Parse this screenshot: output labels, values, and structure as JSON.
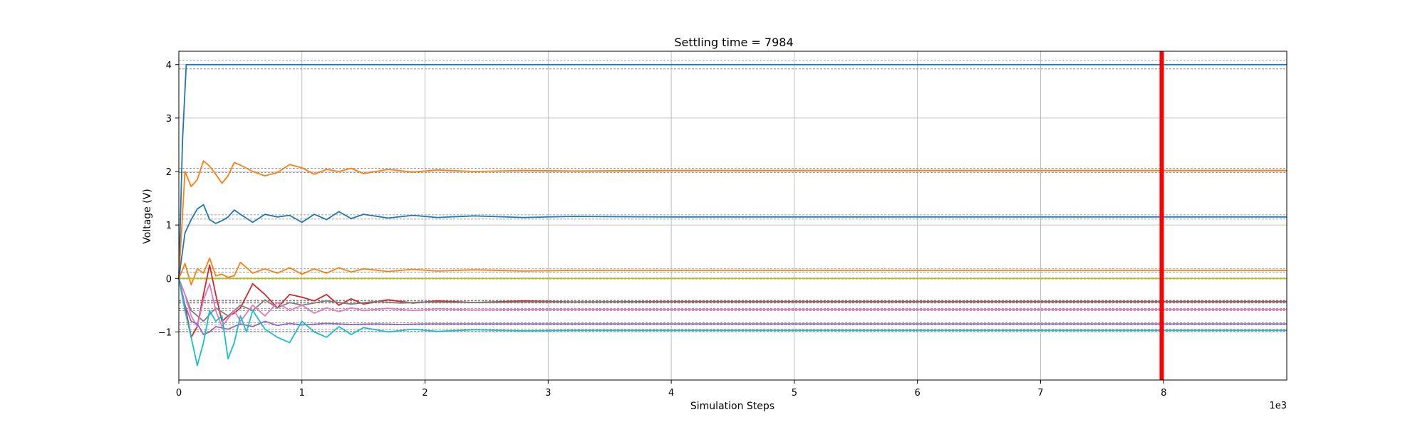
{
  "chart_data": {
    "type": "line",
    "title": "Settling time = 7984",
    "xlabel": "Simulation Steps",
    "ylabel": "Voltage (V)",
    "x_offset_text": "1e3",
    "xlim": [
      0,
      9000
    ],
    "ylim": [
      -1.9,
      4.25
    ],
    "xticks": [
      0,
      1000,
      2000,
      3000,
      4000,
      5000,
      6000,
      7000,
      8000
    ],
    "xtick_labels": [
      "0",
      "1",
      "2",
      "3",
      "4",
      "5",
      "6",
      "7",
      "8"
    ],
    "yticks": [
      -1,
      0,
      1,
      2,
      3,
      4
    ],
    "ytick_labels": [
      "−1",
      "0",
      "1",
      "2",
      "3",
      "4"
    ],
    "grid": true,
    "settling_step": 7984,
    "settling_line_color": "#ff0000",
    "tolerance_band_color": "#808080",
    "series": [
      {
        "target": 4.0,
        "color": "#1f77b4",
        "band": 0.08,
        "x": [
          0,
          30,
          60,
          9000
        ],
        "y": [
          0,
          2.6,
          4.0,
          4.0
        ]
      },
      {
        "target": 2.02,
        "color": "#ff7f0e",
        "band": 0.04,
        "x": [
          0,
          50,
          100,
          150,
          200,
          250,
          300,
          350,
          400,
          450,
          500,
          600,
          700,
          800,
          900,
          1000,
          1100,
          1200,
          1300,
          1400,
          1500,
          1700,
          1900,
          2100,
          2400,
          2800,
          3200,
          4000,
          5000,
          6000,
          7000,
          8000,
          9000
        ],
        "y": [
          0,
          2.0,
          1.72,
          1.85,
          2.2,
          2.1,
          1.95,
          1.78,
          1.92,
          2.17,
          2.12,
          2.0,
          1.92,
          1.98,
          2.13,
          2.07,
          1.95,
          2.04,
          2.0,
          2.06,
          1.96,
          2.04,
          1.99,
          2.03,
          2.0,
          2.02,
          2.01,
          2.02,
          2.02,
          2.02,
          2.02,
          2.02,
          2.02
        ]
      },
      {
        "target": 1.15,
        "color": "#1f77b4",
        "band": 0.04,
        "x": [
          0,
          50,
          100,
          150,
          200,
          250,
          300,
          350,
          400,
          450,
          500,
          600,
          700,
          800,
          900,
          1000,
          1100,
          1200,
          1300,
          1400,
          1500,
          1700,
          1900,
          2100,
          2400,
          2800,
          3200,
          4000,
          5000,
          6000,
          7000,
          8000,
          9000
        ],
        "y": [
          0,
          0.85,
          1.1,
          1.3,
          1.38,
          1.1,
          1.03,
          1.08,
          1.15,
          1.28,
          1.2,
          1.05,
          1.2,
          1.15,
          1.18,
          1.05,
          1.2,
          1.1,
          1.25,
          1.12,
          1.2,
          1.13,
          1.18,
          1.14,
          1.17,
          1.14,
          1.16,
          1.15,
          1.15,
          1.15,
          1.15,
          1.15,
          1.15
        ]
      },
      {
        "target": 0.15,
        "color": "#ff7f0e",
        "band": 0.03,
        "x": [
          0,
          50,
          100,
          150,
          200,
          250,
          300,
          350,
          400,
          450,
          500,
          600,
          700,
          800,
          900,
          1000,
          1100,
          1200,
          1300,
          1400,
          1500,
          1700,
          1900,
          2100,
          2400,
          2800,
          3200,
          4000,
          5000,
          6000,
          7000,
          8000,
          9000
        ],
        "y": [
          0,
          0.28,
          -0.12,
          0.18,
          0.1,
          0.38,
          0.05,
          0.08,
          0.02,
          0.05,
          0.3,
          0.1,
          0.18,
          0.1,
          0.2,
          0.08,
          0.18,
          0.1,
          0.2,
          0.12,
          0.18,
          0.13,
          0.17,
          0.14,
          0.16,
          0.14,
          0.15,
          0.15,
          0.15,
          0.15,
          0.15,
          0.15,
          0.15
        ]
      },
      {
        "target": 0.0,
        "color": "#bcbd22",
        "band": 0.01,
        "x": [
          0,
          9000
        ],
        "y": [
          0.0,
          0.0
        ]
      },
      {
        "target": -0.43,
        "color": "#d62728",
        "band": 0.02,
        "x": [
          0,
          50,
          100,
          150,
          200,
          250,
          300,
          350,
          400,
          450,
          500,
          600,
          700,
          800,
          900,
          1000,
          1100,
          1200,
          1300,
          1400,
          1500,
          1700,
          1900,
          2100,
          2400,
          2800,
          3200,
          4000,
          5000,
          6000,
          7000,
          8000,
          9000
        ],
        "y": [
          0,
          -0.5,
          -1.1,
          -0.9,
          -0.3,
          0.25,
          -0.3,
          -0.8,
          -0.7,
          -0.65,
          -0.55,
          -0.1,
          -0.3,
          -0.55,
          -0.3,
          -0.35,
          -0.42,
          -0.3,
          -0.5,
          -0.38,
          -0.48,
          -0.4,
          -0.46,
          -0.42,
          -0.45,
          -0.42,
          -0.44,
          -0.43,
          -0.43,
          -0.43,
          -0.43,
          -0.43,
          -0.43
        ]
      },
      {
        "target": -0.44,
        "color": "#7f7f7f",
        "band": 0.02,
        "x": [
          0,
          100,
          200,
          300,
          400,
          500,
          600,
          700,
          800,
          900,
          1000,
          1200,
          1400,
          1600,
          1800,
          2000,
          2400,
          2800,
          3200,
          4000,
          5000,
          6000,
          7000,
          8000,
          9000
        ],
        "y": [
          0,
          -0.6,
          -0.8,
          -0.55,
          -0.7,
          -0.5,
          -0.6,
          -0.4,
          -0.55,
          -0.45,
          -0.5,
          -0.42,
          -0.48,
          -0.43,
          -0.46,
          -0.44,
          -0.45,
          -0.44,
          -0.44,
          -0.44,
          -0.44,
          -0.44,
          -0.44,
          -0.44,
          -0.44
        ]
      },
      {
        "target": -0.58,
        "color": "#e377c2",
        "band": 0.02,
        "x": [
          0,
          50,
          100,
          150,
          200,
          250,
          300,
          350,
          400,
          450,
          500,
          600,
          700,
          800,
          900,
          1000,
          1100,
          1200,
          1300,
          1400,
          1500,
          1700,
          1900,
          2100,
          2400,
          2800,
          3200,
          4000,
          5000,
          6000,
          7000,
          8000,
          9000
        ],
        "y": [
          0,
          -0.3,
          -0.7,
          -0.9,
          -0.4,
          -0.1,
          -0.6,
          -0.9,
          -0.75,
          -0.6,
          -0.8,
          -0.5,
          -0.7,
          -0.45,
          -0.6,
          -0.5,
          -0.65,
          -0.55,
          -0.62,
          -0.55,
          -0.6,
          -0.56,
          -0.6,
          -0.57,
          -0.59,
          -0.58,
          -0.58,
          -0.58,
          -0.58,
          -0.58,
          -0.58,
          -0.58,
          -0.58
        ]
      },
      {
        "target": -0.85,
        "color": "#9467bd",
        "band": 0.02,
        "x": [
          0,
          50,
          100,
          150,
          200,
          250,
          300,
          400,
          500,
          600,
          700,
          800,
          900,
          1000,
          1200,
          1400,
          1600,
          1800,
          2000,
          2400,
          2800,
          3200,
          4000,
          5000,
          6000,
          7000,
          8000,
          9000
        ],
        "y": [
          0,
          -0.5,
          -0.8,
          -0.85,
          -1.05,
          -1.0,
          -0.9,
          -0.95,
          -0.85,
          -0.9,
          -0.8,
          -0.88,
          -0.84,
          -0.87,
          -0.84,
          -0.86,
          -0.85,
          -0.86,
          -0.85,
          -0.85,
          -0.85,
          -0.85,
          -0.85,
          -0.85,
          -0.85,
          -0.85,
          -0.85,
          -0.85
        ]
      },
      {
        "target": -0.97,
        "color": "#17becf",
        "band": 0.02,
        "x": [
          0,
          50,
          100,
          150,
          200,
          250,
          300,
          350,
          400,
          450,
          500,
          550,
          600,
          700,
          800,
          900,
          1000,
          1100,
          1200,
          1300,
          1400,
          1500,
          1700,
          1900,
          2100,
          2400,
          2800,
          3200,
          4000,
          5000,
          6000,
          7000,
          8000,
          9000
        ],
        "y": [
          0,
          -0.6,
          -1.1,
          -1.63,
          -1.2,
          -0.6,
          -0.8,
          -0.7,
          -1.5,
          -1.2,
          -0.7,
          -1.0,
          -0.6,
          -0.95,
          -1.1,
          -1.2,
          -0.8,
          -1.0,
          -1.1,
          -0.9,
          -1.05,
          -0.92,
          -1.0,
          -0.95,
          -0.99,
          -0.96,
          -0.98,
          -0.97,
          -0.97,
          -0.97,
          -0.97,
          -0.97,
          -0.97,
          -0.97
        ]
      }
    ]
  }
}
